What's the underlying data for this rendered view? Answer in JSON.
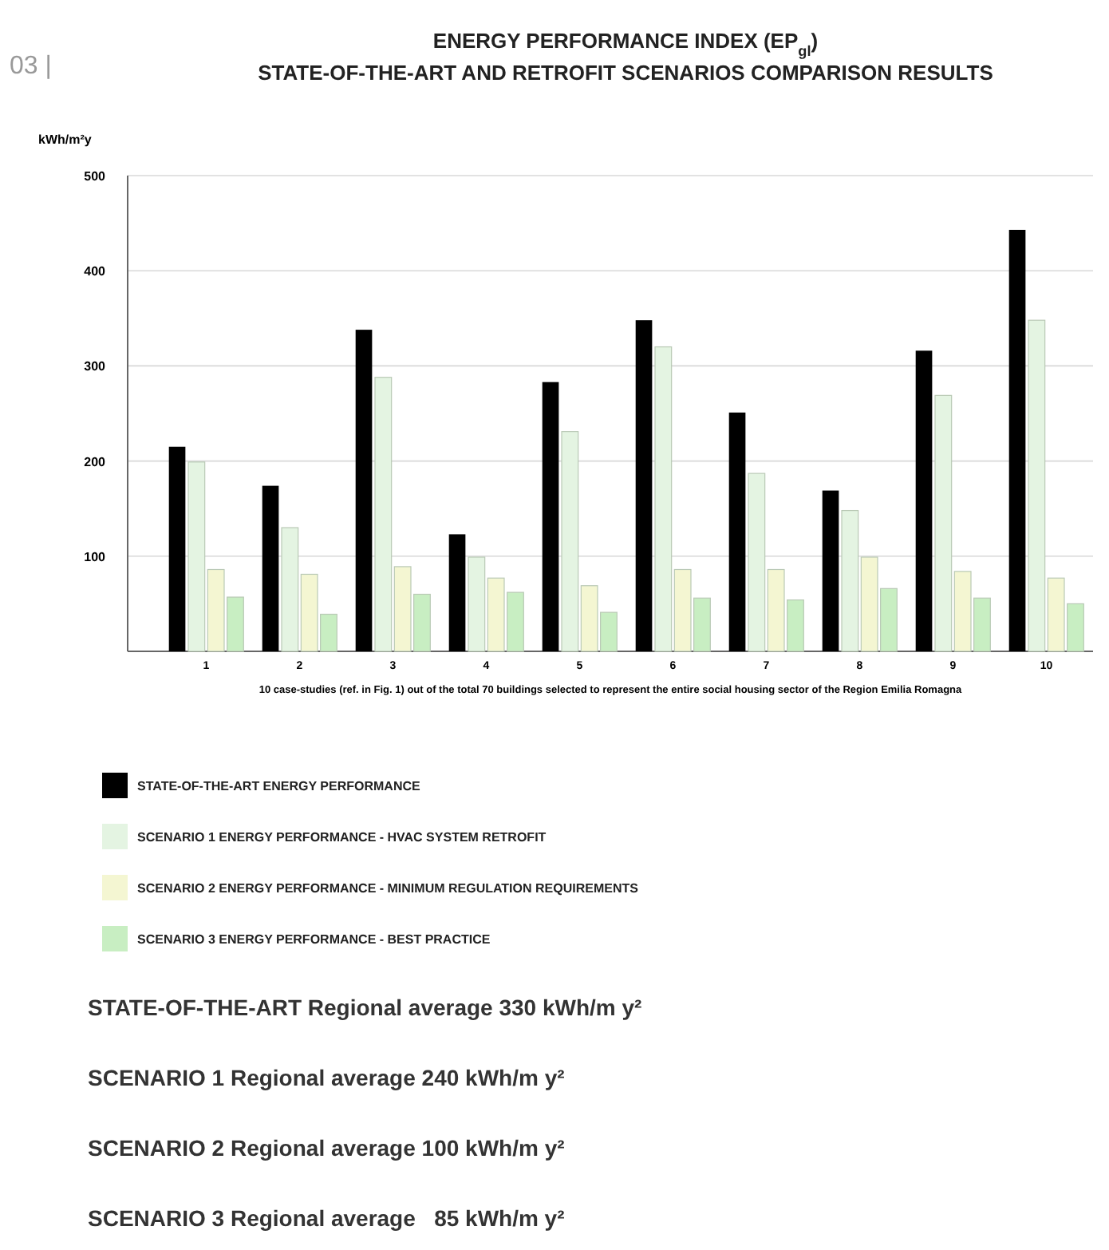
{
  "chart_data": {
    "type": "bar",
    "title": "ENERGY PERFORMANCE INDEX (EP$_{gl}$)",
    "subtitle": "STATE-OF-THE-ART AND RETROFIT SCENARIOS COMPARISON RESULTS",
    "ylabel": "kWh/m²y",
    "xlabel": "10 case-studies (ref. in Fig. 1) out of the total 70 buildings selected to represent the entire social housing sector of the Region Emilia Romagna",
    "categories": [
      "1",
      "2",
      "3",
      "4",
      "5",
      "6",
      "7",
      "8",
      "9",
      "10"
    ],
    "series": [
      {
        "name": "STATE-OF-THE-ART ENERGY PERFORMANCE",
        "color": "#000000",
        "values": [
          215,
          174,
          338,
          123,
          283,
          348,
          251,
          169,
          316,
          443
        ]
      },
      {
        "name": "SCENARIO 1 ENERGY PERFORMANCE - HVAC SYSTEM RETROFIT",
        "color": "#e4f4e2",
        "values": [
          199,
          130,
          288,
          99,
          231,
          320,
          187,
          148,
          269,
          348
        ]
      },
      {
        "name": "SCENARIO 2 ENERGY PERFORMANCE - MINIMUM REGULATION REQUIREMENTS",
        "color": "#f4f6d2",
        "values": [
          86,
          81,
          89,
          77,
          69,
          86,
          86,
          99,
          84,
          77
        ]
      },
      {
        "name": "SCENARIO 3 ENERGY PERFORMANCE - BEST PRACTICE",
        "color": "#c8eec2",
        "values": [
          57,
          39,
          60,
          62,
          41,
          56,
          54,
          66,
          56,
          50
        ]
      }
    ],
    "ylim": [
      0,
      500
    ],
    "yticks": [
      100,
      200,
      300,
      400,
      500
    ],
    "grid": "y",
    "legend": "bottom",
    "annotations": [
      "03 |",
      "STATE-OF-THE-ART Regional average 330 kWh/m y²",
      "SCENARIO 1 Regional average 240 kWh/m y²",
      "SCENARIO 2 Regional average 100 kWh/m y²",
      "SCENARIO 3 Regional average   85 kWh/m y²"
    ]
  }
}
